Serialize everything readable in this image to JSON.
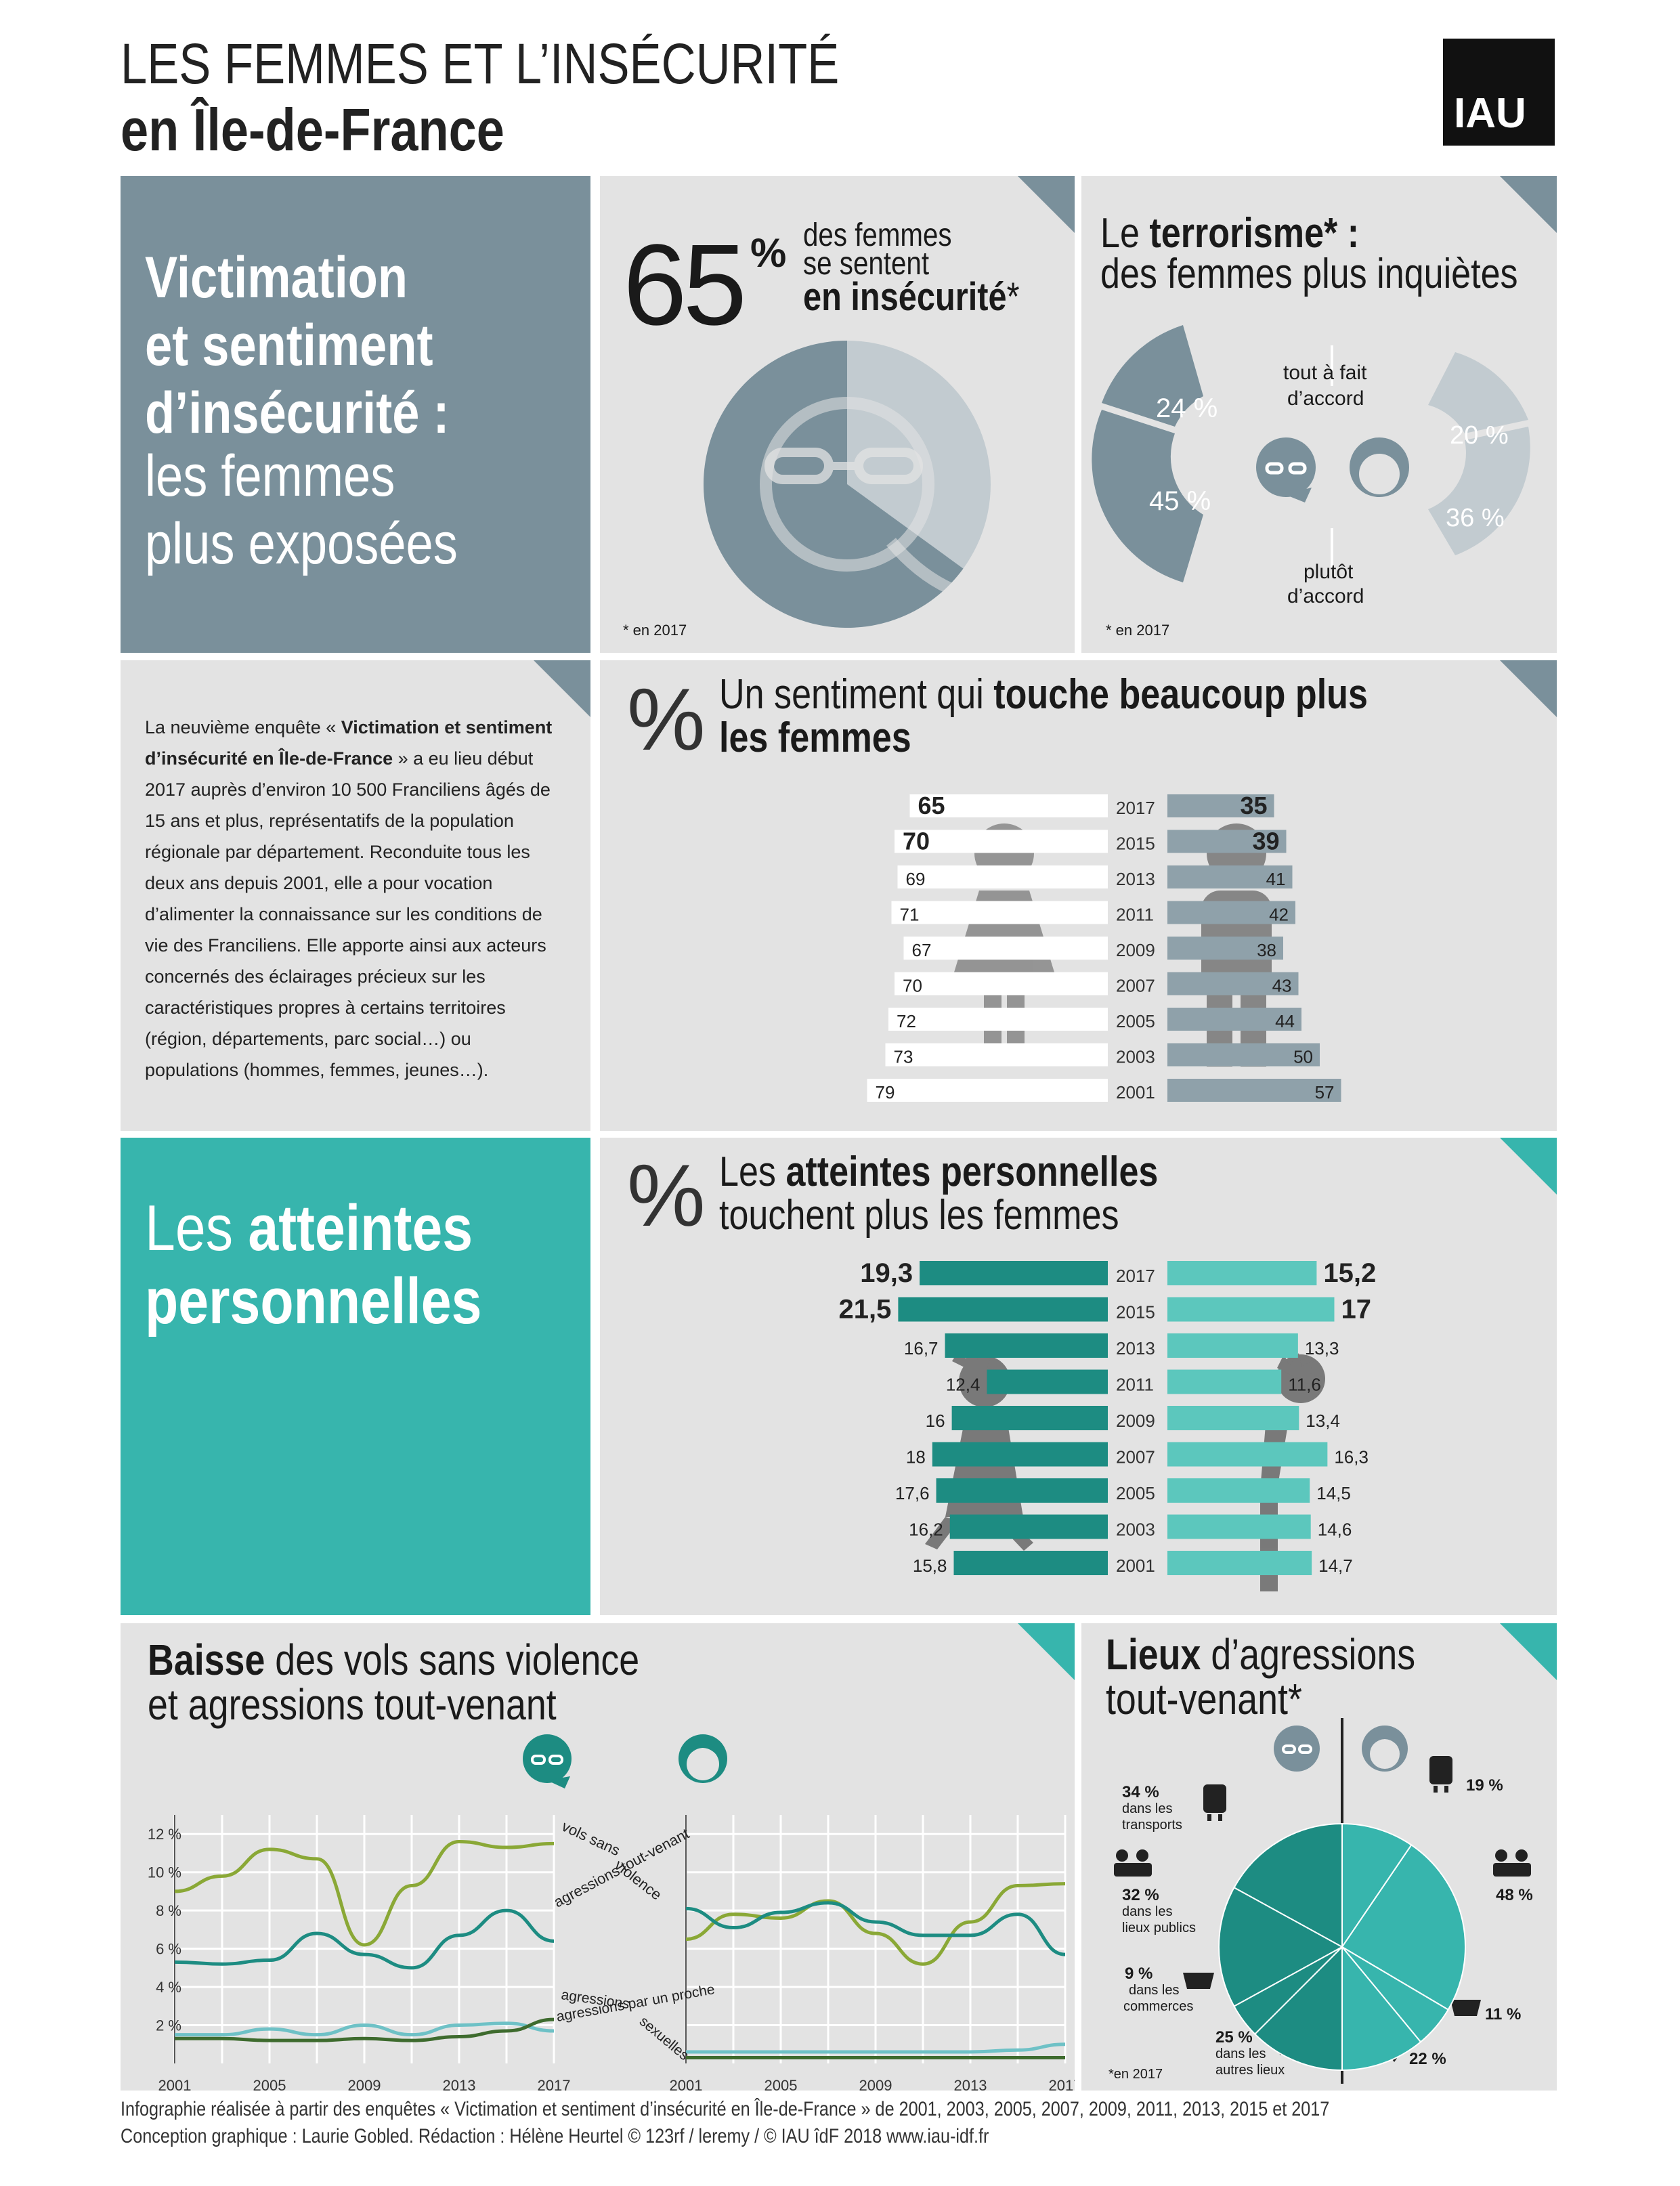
{
  "header": {
    "title_line1": "LES FEMMES ET L’INSÉCURITÉ",
    "title_line2": "en Île-de-France",
    "logo": "IAU"
  },
  "colors": {
    "slate": "#7a909b",
    "slate_bar": "#8fa1aa",
    "teal_dark": "#1d8c82",
    "teal": "#37b5ad",
    "teal_light": "#5cc7bd",
    "panel": "#e3e3e3",
    "olive": "#8aa836",
    "dark_green": "#3e6b2e",
    "light_teal": "#6ec1c6"
  },
  "intro": {
    "title_bold_1": "Victimation",
    "title_bold_2": "et sentiment",
    "title_bold_3": "d’insécurité :",
    "subtitle_1": "les femmes",
    "subtitle_2": "plus exposées"
  },
  "stat65": {
    "value": "65",
    "unit": "%",
    "line1": "des femmes",
    "line2": "se sentent",
    "line3": "en insécurité",
    "star": "*",
    "footnote": "* en 2017",
    "pct": 65
  },
  "terror": {
    "title_prefix": "Le ",
    "title_bold": "terrorisme",
    "title_suffix": "* :",
    "title_line2": "des femmes plus inquiètes",
    "label_top": "tout à fait\nd’accord",
    "label_top_1": "tout à fait",
    "label_top_2": "d’accord",
    "label_bottom_1": "plutôt",
    "label_bottom_2": "d’accord",
    "women_top": "24 %",
    "women_bottom": "45 %",
    "men_top": "20 %",
    "men_bottom": "36 %",
    "footnote": "* en 2017"
  },
  "survey_text": {
    "p1_pre": "La neuvième enquête « ",
    "p1_bold": "Victimation et sentiment d’insécurité en Île-de-France",
    "p1_post": " » a eu lieu début 2017 auprès d’environ 10 500 Franciliens âgés de 15 ans et plus, représentatifs de la population régionale par département. Reconduite tous les deux ans depuis 2001, elle a pour vocation d’alimenter la connaissance sur les conditions de vie des Franciliens. Elle apporte ainsi aux acteurs concernés des éclairages précieux sur les caractéristiques propres à certains territoires (région, départements, parc social…) ou populations (hommes, femmes, jeunes…)."
  },
  "sentiment": {
    "pct_symbol": "%",
    "title_pre": "Un sentiment qui ",
    "title_bold1": "touche beaucoup plus",
    "title_bold2": "les femmes"
  },
  "atteintes_side": {
    "line1_pre": "Les ",
    "line1_bold": "atteintes",
    "line2_bold": "personnelles"
  },
  "atteintes": {
    "pct_symbol": "%",
    "title_pre": "Les ",
    "title_bold": "atteintes personnelles",
    "title_line2": "touchent plus les femmes"
  },
  "vols": {
    "title_bold": "Baisse",
    "title_rest1": " des vols sans violence",
    "title_line2": "et agressions tout-venant",
    "label_vols": "vols sans",
    "label_vols2": "violence",
    "label_agr": "agressions tout-venant",
    "label_sex": "agressions",
    "label_sex2": "sexuelles",
    "label_proche": "agressions par un proche"
  },
  "lieux": {
    "title_bold": "Lieux",
    "title_rest": " d’agressions",
    "title_line2": "tout-venant",
    "star": "*",
    "footnote": "*en 2017",
    "w_transports": "34 %",
    "w_transports_l": "dans les",
    "w_transports_l2": "transports",
    "w_publics": "32 %",
    "w_publics_l": "dans les",
    "w_publics_l2": "lieux publics",
    "w_commerces": "9 %",
    "w_commerces_l": "dans les",
    "w_commerces_l2": "commerces",
    "w_autres": "25 %",
    "w_autres_l": "dans les",
    "w_autres_l2": "autres lieux",
    "m_transports": "19 %",
    "m_publics": "48 %",
    "m_commerces": "11 %",
    "m_autres": "22 %"
  },
  "footer": {
    "line1": "Infographie réalisée à partir des enquêtes « Victimation et sentiment d’insécurité en Île-de-France » de 2001, 2003, 2005, 2007, 2009, 2011, 2013, 2015 et 2017",
    "line2": "Conception graphique : Laurie Gobled. Rédaction : Hélène Heurtel © 123rf / leremy / © IAU îdF 2018 www.iau-idf.fr"
  },
  "chart_data": [
    {
      "type": "bar",
      "title": "Un sentiment qui touche beaucoup plus les femmes",
      "unit": "%",
      "categories": [
        "2017",
        "2015",
        "2013",
        "2011",
        "2009",
        "2007",
        "2005",
        "2003",
        "2001"
      ],
      "series": [
        {
          "name": "femmes",
          "values": [
            65,
            70,
            69,
            71,
            67,
            70,
            72,
            73,
            79
          ],
          "labels": [
            "65",
            "70",
            "69",
            "71",
            "67",
            "70",
            "72",
            "73",
            "79"
          ]
        },
        {
          "name": "hommes",
          "values": [
            35,
            39,
            41,
            42,
            38,
            43,
            44,
            50,
            57
          ],
          "labels": [
            "35",
            "39",
            "41",
            "42",
            "38",
            "43",
            "44",
            "50",
            "57"
          ]
        }
      ]
    },
    {
      "type": "bar",
      "title": "Les atteintes personnelles touchent plus les femmes",
      "unit": "%",
      "categories": [
        "2017",
        "2015",
        "2013",
        "2011",
        "2009",
        "2007",
        "2005",
        "2003",
        "2001"
      ],
      "series": [
        {
          "name": "femmes",
          "values": [
            19.3,
            21.5,
            16.7,
            12.4,
            16,
            18,
            17.6,
            16.2,
            15.8
          ],
          "labels": [
            "19,3",
            "21,5",
            "16,7",
            "12,4",
            "16",
            "18",
            "17,6",
            "16,2",
            "15,8"
          ]
        },
        {
          "name": "hommes",
          "values": [
            15.2,
            17,
            13.3,
            11.6,
            13.4,
            16.3,
            14.5,
            14.6,
            14.7
          ],
          "labels": [
            "15,2",
            "17",
            "13,3",
            "11,6",
            "13,4",
            "16,3",
            "14,5",
            "14,6",
            "14,7"
          ]
        }
      ]
    },
    {
      "type": "line",
      "title": "Baisse des vols sans violence et agressions tout-venant",
      "x": [
        2001,
        2003,
        2005,
        2007,
        2009,
        2011,
        2013,
        2015,
        2017
      ],
      "xticks": [
        "2001",
        "2005",
        "2009",
        "2013",
        "2017"
      ],
      "yticks": [
        "2 %",
        "4 %",
        "6 %",
        "8 %",
        "10 %",
        "12 %"
      ],
      "ylim": [
        0,
        13
      ],
      "series": [
        {
          "name": "vols sans violence",
          "panel": "femmes",
          "values": [
            9.0,
            9.8,
            11.2,
            10.7,
            6.2,
            9.3,
            11.6,
            11.3,
            11.5
          ],
          "color": "#8aa836"
        },
        {
          "name": "agressions tout-venant",
          "panel": "femmes",
          "values": [
            5.3,
            5.2,
            5.4,
            6.8,
            5.7,
            5.0,
            6.7,
            8.0,
            6.4
          ],
          "color": "#1d8c82"
        },
        {
          "name": "agressions par un proche",
          "panel": "femmes",
          "values": [
            1.5,
            1.5,
            1.8,
            1.5,
            2.0,
            1.5,
            2.0,
            2.1,
            1.7
          ],
          "color": "#6ec1c6"
        },
        {
          "name": "agressions sexuelles",
          "panel": "femmes",
          "values": [
            1.3,
            1.3,
            1.2,
            1.2,
            1.3,
            1.2,
            1.4,
            1.7,
            2.3
          ],
          "color": "#3e6b2e"
        },
        {
          "name": "vols sans violence",
          "panel": "hommes",
          "values": [
            6.5,
            7.8,
            7.6,
            8.5,
            6.8,
            5.2,
            7.4,
            9.3,
            9.4
          ],
          "color": "#8aa836"
        },
        {
          "name": "agressions tout-venant",
          "panel": "hommes",
          "values": [
            8.1,
            7.1,
            7.9,
            8.4,
            7.4,
            6.7,
            6.7,
            7.8,
            5.7
          ],
          "color": "#1d8c82"
        },
        {
          "name": "agressions par un proche",
          "panel": "hommes",
          "values": [
            0.6,
            0.6,
            0.6,
            0.6,
            0.6,
            0.6,
            0.6,
            0.7,
            1.0
          ],
          "color": "#6ec1c6"
        },
        {
          "name": "agressions sexuelles",
          "panel": "hommes",
          "values": [
            0.3,
            0.3,
            0.3,
            0.3,
            0.3,
            0.3,
            0.3,
            0.3,
            0.3
          ],
          "color": "#3e6b2e"
        }
      ]
    },
    {
      "type": "pie",
      "title": "Lieux d’agressions tout-venant",
      "unit": "%",
      "series": [
        {
          "name": "femmes",
          "labels": [
            "transports",
            "lieux publics",
            "commerces",
            "autres lieux"
          ],
          "values": [
            34,
            32,
            9,
            25
          ]
        },
        {
          "name": "hommes",
          "labels": [
            "transports",
            "lieux publics",
            "commerces",
            "autres lieux"
          ],
          "values": [
            19,
            48,
            11,
            22
          ]
        }
      ]
    }
  ]
}
